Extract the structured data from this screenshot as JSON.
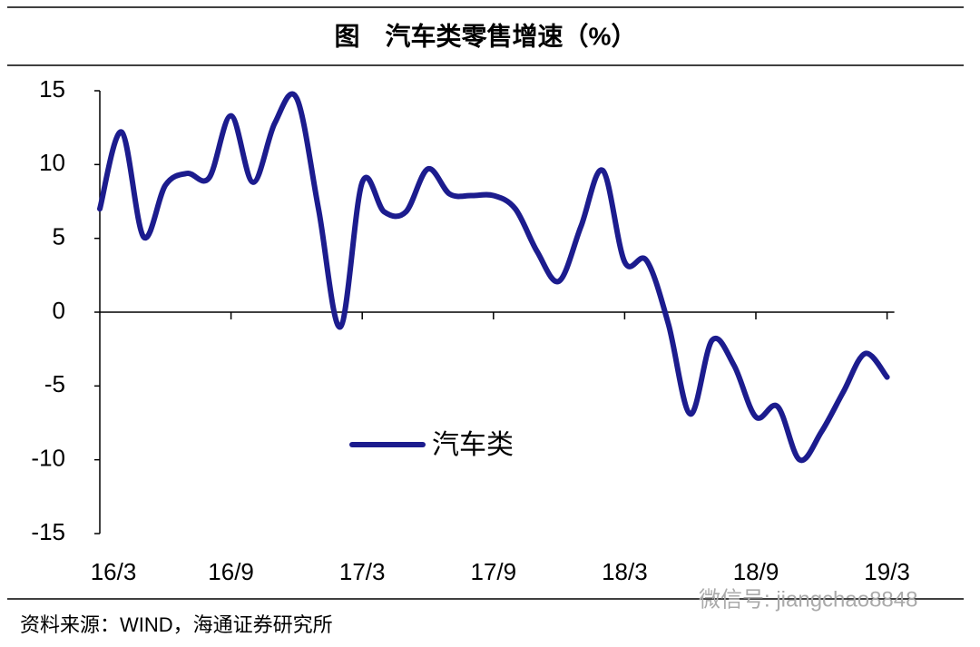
{
  "chart_data": {
    "type": "line",
    "title": "图　汽车类零售增速（%）",
    "categories": [
      "16/3",
      null,
      null,
      null,
      null,
      null,
      "16/9",
      null,
      null,
      null,
      null,
      null,
      "17/3",
      null,
      null,
      null,
      null,
      null,
      "17/9",
      null,
      null,
      null,
      null,
      null,
      "18/3",
      null,
      null,
      null,
      null,
      null,
      "18/9",
      null,
      null,
      null,
      null,
      null,
      "19/3"
    ],
    "series": [
      {
        "name": "汽车类",
        "color": "#1c1c8e",
        "values": [
          7.0,
          12.2,
          5.1,
          8.6,
          9.4,
          9.1,
          13.3,
          8.8,
          12.8,
          14.5,
          7.0,
          -1.0,
          8.8,
          6.8,
          6.8,
          9.7,
          8.0,
          7.9,
          7.9,
          7.0,
          4.1,
          2.1,
          5.8,
          9.6,
          3.4,
          3.5,
          -0.8,
          -6.9,
          -1.9,
          -3.6,
          -7.1,
          -6.4,
          -10.0,
          -8.1,
          -5.4,
          -2.8,
          -4.4
        ]
      }
    ],
    "ylim": [
      -15,
      15
    ],
    "yticks": [
      -15,
      -10,
      -5,
      0,
      5,
      10,
      15
    ],
    "source": "资料来源：WIND，海通证券研究所",
    "watermark": "微信号: jiangchao8848"
  }
}
